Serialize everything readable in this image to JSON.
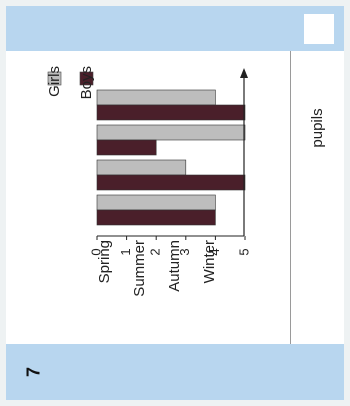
{
  "question": {
    "number": "7"
  },
  "chart_data": {
    "type": "bar",
    "categories": [
      "Spring",
      "Summer",
      "Autumn",
      "Winter"
    ],
    "series": [
      {
        "name": "Girls",
        "values": [
          4,
          5,
          3,
          4
        ]
      },
      {
        "name": "Boys",
        "values": [
          5,
          2,
          5,
          4
        ]
      }
    ],
    "ylabel": "pupils",
    "ylim": [
      0,
      5
    ],
    "yticks": [
      "0",
      "1",
      "2",
      "3",
      "4",
      "5"
    ],
    "legend_position": "top-left",
    "colors": {
      "Girls": "#bdbdbd",
      "Boys": "#4a1f2a"
    },
    "grid": false
  }
}
